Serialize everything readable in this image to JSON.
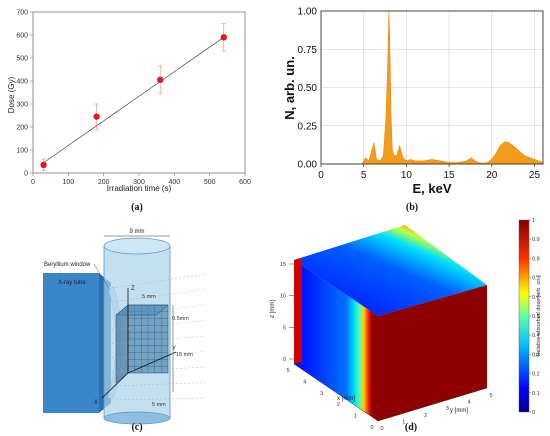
{
  "chart_data": [
    {
      "panel": "(a)",
      "type": "scatter",
      "xlabel": "Irradiation time (s)",
      "ylabel": "Dose (Gy)",
      "xlim": [
        0,
        600
      ],
      "ylim": [
        0,
        700
      ],
      "xticks": [
        "0",
        "100",
        "200",
        "300",
        "400",
        "500",
        "600"
      ],
      "yticks": [
        "0",
        "100",
        "200",
        "300",
        "400",
        "500",
        "600",
        "700"
      ],
      "points": [
        {
          "x": 30,
          "y": 35,
          "err": 25
        },
        {
          "x": 180,
          "y": 245,
          "err": 55
        },
        {
          "x": 360,
          "y": 405,
          "err": 60
        },
        {
          "x": 540,
          "y": 590,
          "err": 60
        }
      ],
      "fit_line": [
        {
          "x": 30,
          "y": 45
        },
        {
          "x": 540,
          "y": 590
        }
      ],
      "colors": {
        "points": "#e31a1c",
        "line": "#444444"
      }
    },
    {
      "panel": "(b)",
      "type": "area",
      "xlabel": "E, keV",
      "ylabel": "N, arb. un.",
      "xlim": [
        0,
        26
      ],
      "ylim": [
        0,
        1.0
      ],
      "xticks": [
        "0",
        "5",
        "10",
        "15",
        "20",
        "25"
      ],
      "yticks": [
        "0.00",
        "0.25",
        "0.50",
        "0.75",
        "1.00"
      ],
      "grid": true,
      "x": [
        0,
        4.8,
        5.2,
        5.6,
        5.9,
        6.2,
        6.5,
        6.9,
        7.3,
        7.6,
        7.8,
        7.95,
        8.05,
        8.2,
        8.35,
        8.6,
        8.9,
        9.2,
        9.6,
        10,
        10.5,
        11,
        12,
        13,
        14,
        15,
        16,
        17,
        17.6,
        18,
        18.5,
        19,
        19.5,
        20,
        20.5,
        21,
        21.5,
        22,
        22.5,
        23,
        23.5,
        24,
        24.5,
        25,
        25.5,
        26
      ],
      "y": [
        0,
        0,
        0.04,
        0.02,
        0.08,
        0.14,
        0.03,
        0.02,
        0.05,
        0.3,
        0.62,
        1.0,
        0.82,
        0.34,
        0.09,
        0.05,
        0.06,
        0.12,
        0.04,
        0.02,
        0.03,
        0.02,
        0.02,
        0.03,
        0.02,
        0.01,
        0.01,
        0.02,
        0.04,
        0.02,
        0.01,
        0.005,
        0.01,
        0.03,
        0.07,
        0.12,
        0.145,
        0.14,
        0.12,
        0.095,
        0.07,
        0.05,
        0.04,
        0.03,
        0.02,
        0.01
      ],
      "colors": {
        "fill": "#f39c1c",
        "line": "#e8890b"
      }
    },
    {
      "panel": "(c)",
      "type": "diagram",
      "labels": {
        "width": "9 mm",
        "beryllium": "Beryllium window",
        "xray": "X-ray tube",
        "z": "Z",
        "y": "Y",
        "x": "X",
        "five_a": "5 mm",
        "five_b": "5 mm",
        "fifteen": "15 mm",
        "step": "0.5mm"
      }
    },
    {
      "panel": "(d)",
      "type": "heatmap",
      "xlabel": "x [mm]",
      "ylabel": "y [mm]",
      "zlabel": "z [mm]",
      "colorbar_label": "Relative absorbed dose [arb. un.]",
      "colorbar_ticks": [
        "0",
        "0.1",
        "0.2",
        "0.3",
        "0.4",
        "0.5",
        "0.6",
        "0.7",
        "0.8",
        "0.9",
        "1"
      ],
      "zticks": [
        "0",
        "5",
        "10",
        "15"
      ],
      "xticks": [
        "0",
        "1",
        "2",
        "3",
        "4",
        "5"
      ],
      "yticks": [
        "0",
        "1",
        "2",
        "3",
        "4",
        "5"
      ],
      "colormap": [
        "#00008f",
        "#0000ff",
        "#0070ff",
        "#00dfff",
        "#50ffaf",
        "#c0ff40",
        "#ffd000",
        "#ff6000",
        "#ef0000",
        "#800000"
      ]
    }
  ]
}
